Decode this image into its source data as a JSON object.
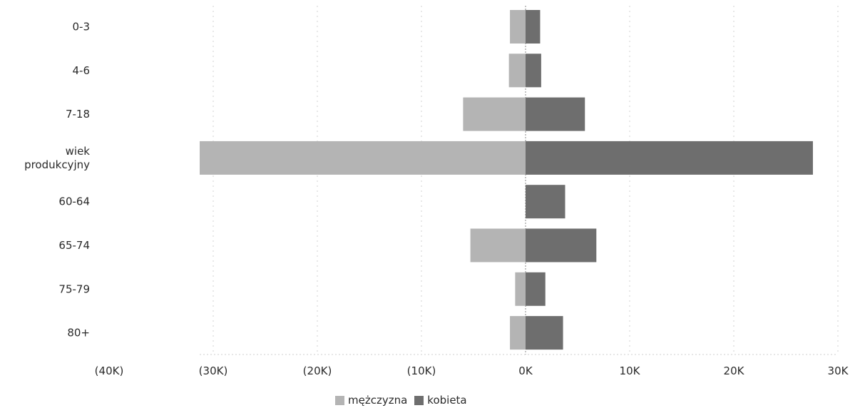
{
  "chart_data": {
    "type": "bar",
    "orientation": "horizontal",
    "title": "",
    "xlabel": "",
    "ylabel": "",
    "categories": [
      "0-3",
      "4-6",
      "7-18",
      "wiek produkcyjny",
      "60-64",
      "65-74",
      "75-79",
      "80+"
    ],
    "category_lines": [
      [
        "0-3"
      ],
      [
        "4-6"
      ],
      [
        "7-18"
      ],
      [
        "wiek",
        "produkcyjny"
      ],
      [
        "60-64"
      ],
      [
        "65-74"
      ],
      [
        "75-79"
      ],
      [
        "80+"
      ]
    ],
    "series": [
      {
        "name": "mężczyzna",
        "color": "#b4b4b4",
        "values": [
          -1500,
          -1600,
          -6000,
          -31300,
          0,
          -5300,
          -1000,
          -1500
        ]
      },
      {
        "name": "kobieta",
        "color": "#6e6e6e",
        "values": [
          1400,
          1500,
          5700,
          27600,
          3800,
          6800,
          1900,
          3600
        ]
      }
    ],
    "xlim": [
      -40000,
      30000
    ],
    "xticks": [
      -40000,
      -30000,
      -20000,
      -10000,
      0,
      10000,
      20000,
      30000
    ],
    "xtick_labels": [
      "(40K)",
      "(30K)",
      "(20K)",
      "(10K)",
      "0K",
      "10K",
      "20K",
      "30K"
    ],
    "grid": true,
    "legend_position": "bottom"
  },
  "legend": {
    "male_label": "mężczyzna",
    "female_label": "kobieta"
  }
}
